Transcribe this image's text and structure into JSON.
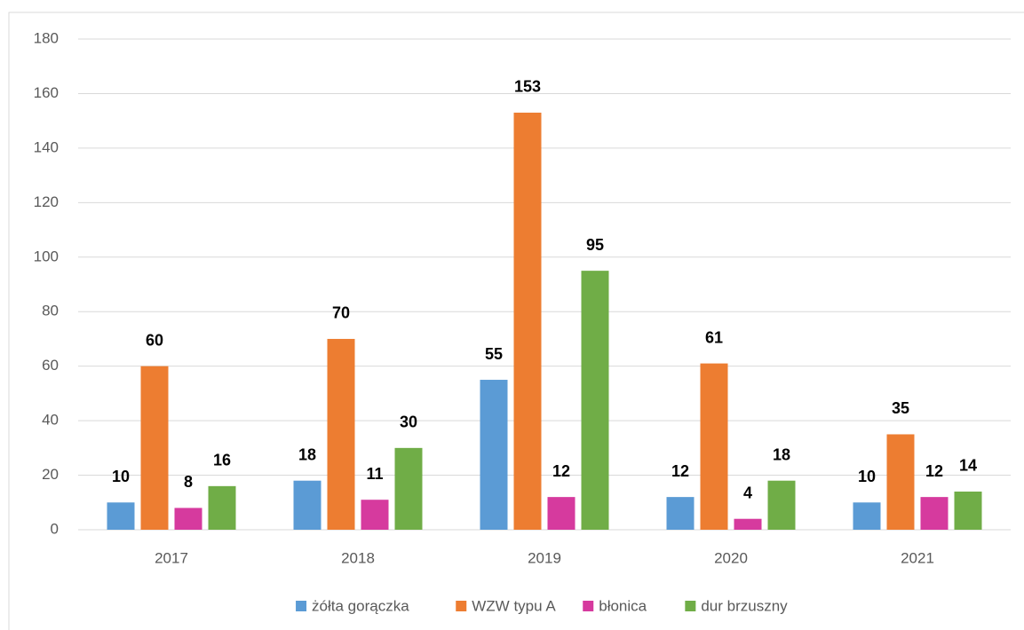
{
  "chart_data": {
    "type": "bar",
    "categories": [
      "2017",
      "2018",
      "2019",
      "2020",
      "2021"
    ],
    "series": [
      {
        "name": "żółta gorączka",
        "color": "#5b9bd5",
        "values": [
          10,
          18,
          55,
          12,
          10
        ]
      },
      {
        "name": "WZW typu A",
        "color": "#ed7d31",
        "values": [
          60,
          70,
          153,
          61,
          35
        ]
      },
      {
        "name": "błonica",
        "color": "#d63a9e",
        "values": [
          8,
          11,
          12,
          4,
          12
        ]
      },
      {
        "name": "dur brzuszny",
        "color": "#70ad47",
        "values": [
          16,
          30,
          95,
          18,
          14
        ]
      }
    ],
    "ylim": [
      0,
      180
    ],
    "yticks": [
      0,
      20,
      40,
      60,
      80,
      100,
      120,
      140,
      160,
      180
    ],
    "grid": true,
    "legend": "bottom"
  }
}
